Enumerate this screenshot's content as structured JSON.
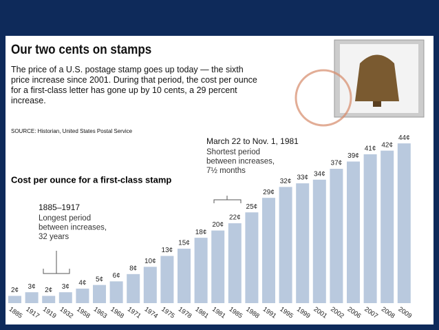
{
  "chart_data": {
    "type": "bar",
    "title": "Our two cents on stamps",
    "subtitle": "The price of a U.S. postage stamp goes up today — the sixth price increase since 2001. During that period, the cost per ounce for a first-class letter has gone up by 10 cents, a 29 percent increase.",
    "source": "SOURCE: Historian, United States Postal Service",
    "chart_title": "Cost per ounce for a first-class stamp",
    "annotations": [
      {
        "heading": "1885–1917",
        "lines": [
          "Longest period",
          "between increases,",
          "32 years"
        ]
      },
      {
        "heading": "March 22 to Nov. 1, 1981",
        "lines": [
          "Shortest period",
          "between increases,",
          "7½ months"
        ]
      }
    ],
    "categories": [
      "1885",
      "1917",
      "1919",
      "1932",
      "1958",
      "1963",
      "1968",
      "1971",
      "1974",
      "1975",
      "1978",
      "1981",
      "1981",
      "1985",
      "1988",
      "1991",
      "1995",
      "1999",
      "2001",
      "2002",
      "2006",
      "2007",
      "2008",
      "2009"
    ],
    "values": [
      2,
      3,
      2,
      3,
      4,
      5,
      6,
      8,
      10,
      13,
      15,
      18,
      20,
      22,
      25,
      29,
      32,
      33,
      34,
      37,
      39,
      41,
      42,
      44
    ],
    "value_labels": [
      "2¢",
      "3¢",
      "2¢",
      "3¢",
      "4¢",
      "5¢",
      "6¢",
      "8¢",
      "10¢",
      "13¢",
      "15¢",
      "18¢",
      "20¢",
      "22¢",
      "25¢",
      "29¢",
      "32¢",
      "33¢",
      "34¢",
      "37¢",
      "39¢",
      "41¢",
      "42¢",
      "44¢"
    ],
    "color": "#b9c9de"
  }
}
